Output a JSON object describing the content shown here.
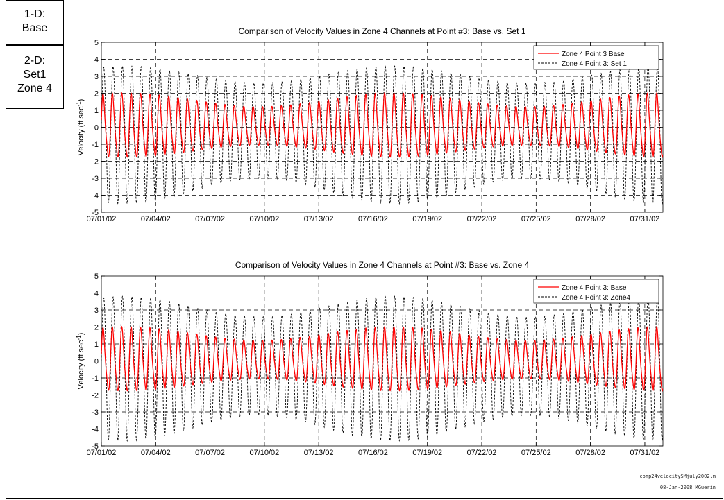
{
  "boxes": [
    {
      "lines": [
        "1-D:",
        "Base"
      ]
    },
    {
      "lines": [
        "2-D:",
        "Set1",
        "Zone 4"
      ]
    }
  ],
  "footer": {
    "file": "comp24velocitySMjuly2002.m",
    "date": "08-Jan-2008 MGuerin"
  },
  "chart_data": [
    {
      "type": "line",
      "title": "Comparison of Velocity Values in Zone 4 Channels at Point #3: Base vs. Set 1",
      "ylabel": "Velocity (ft sec",
      "ylabel_sup": "-1",
      "ylabel_close": ")",
      "ylim": [
        -5,
        5
      ],
      "yticks": [
        -5,
        -4,
        -3,
        -2,
        -1,
        0,
        1,
        2,
        3,
        4,
        5
      ],
      "xlim": [
        "07/01/02",
        "08/01/02"
      ],
      "xticks": [
        "07/01/02",
        "07/04/02",
        "07/07/02",
        "07/10/02",
        "07/13/02",
        "07/16/02",
        "07/19/02",
        "07/22/02",
        "07/25/02",
        "07/28/02",
        "07/31/02"
      ],
      "grid": true,
      "legend_position": "top-right",
      "cycles_per_day": 1.93,
      "series": [
        {
          "name": "Zone 4 Point 3 Base",
          "color": "#ff0000",
          "style": "solid",
          "amplitude_min": 1.2,
          "amplitude_max": 2.0
        },
        {
          "name": "Zone 4 Point 3: Set 1",
          "color": "#000000",
          "style": "dashed",
          "amplitude_min": 2.6,
          "amplitude_max": 3.6,
          "trough_min": 3.0,
          "trough_max": 4.5
        }
      ]
    },
    {
      "type": "line",
      "title": "Comparison of Velocity Values in Zone 4 Channels at Point #3: Base vs. Zone 4",
      "ylabel": "Velocity (ft sec",
      "ylabel_sup": "-1",
      "ylabel_close": ")",
      "ylim": [
        -5,
        5
      ],
      "yticks": [
        -5,
        -4,
        -3,
        -2,
        -1,
        0,
        1,
        2,
        3,
        4,
        5
      ],
      "xlim": [
        "07/01/02",
        "08/01/02"
      ],
      "xticks": [
        "07/01/02",
        "07/04/02",
        "07/07/02",
        "07/10/02",
        "07/13/02",
        "07/16/02",
        "07/19/02",
        "07/22/02",
        "07/25/02",
        "07/28/02",
        "07/31/02"
      ],
      "grid": true,
      "legend_position": "top-right",
      "cycles_per_day": 1.93,
      "series": [
        {
          "name": "Zone 4 Point 3: Base",
          "color": "#ff0000",
          "style": "solid",
          "amplitude_min": 1.2,
          "amplitude_max": 2.0
        },
        {
          "name": "Zone 4 Point 3: Zone4",
          "color": "#000000",
          "style": "dashed",
          "amplitude_min": 2.6,
          "amplitude_max": 3.8,
          "trough_min": 3.2,
          "trough_max": 4.7
        }
      ]
    }
  ]
}
